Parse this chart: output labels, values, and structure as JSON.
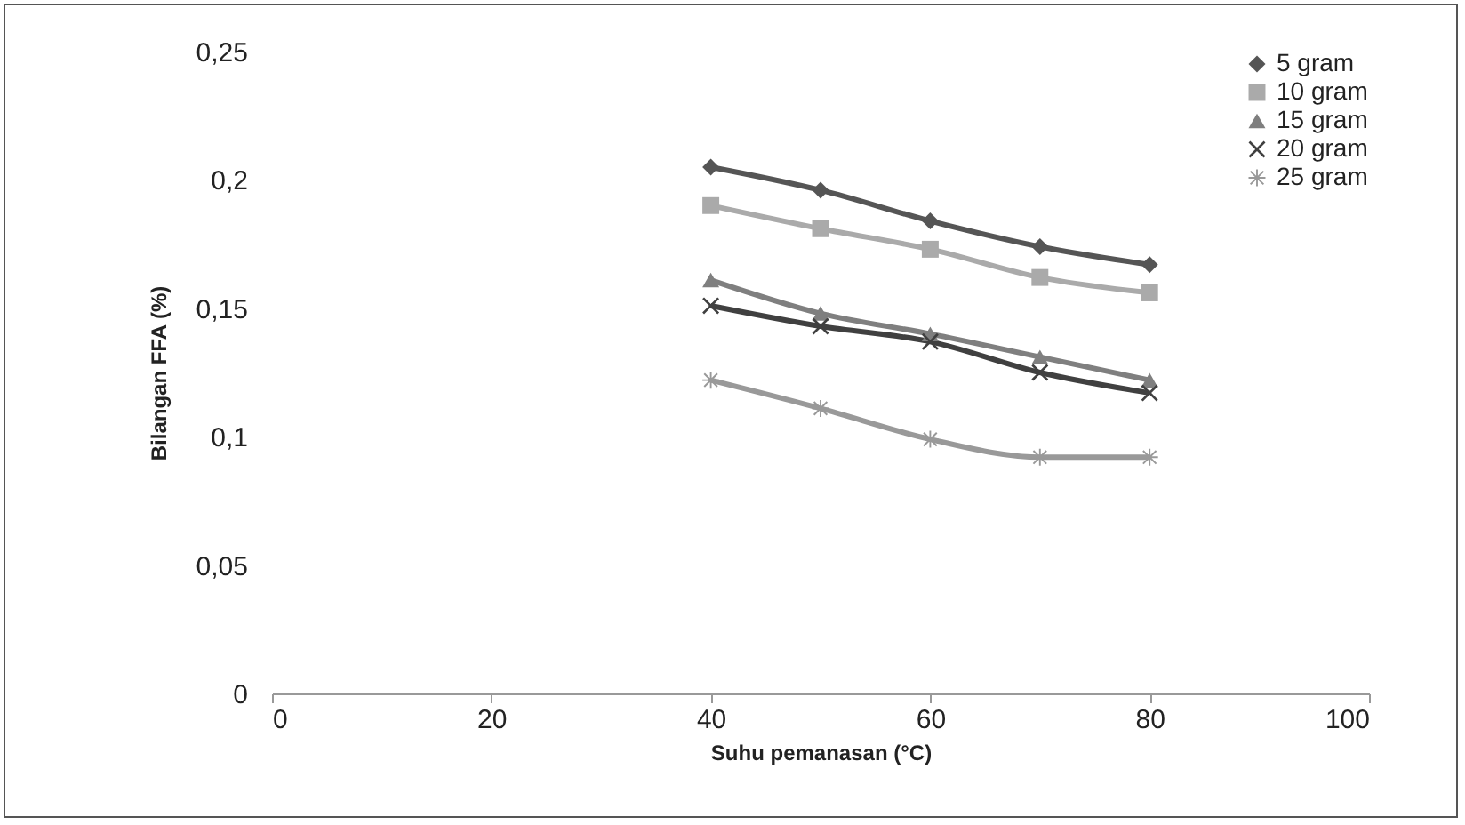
{
  "chart_data": {
    "type": "line",
    "xlabel": "Suhu pemanasan (°C)",
    "ylabel": "Bilangan FFA (%)",
    "x": [
      40,
      50,
      60,
      70,
      80
    ],
    "xlim": [
      0,
      100
    ],
    "xticks": [
      0,
      20,
      40,
      60,
      80,
      100
    ],
    "ylim": [
      0,
      0.25
    ],
    "yticks": [
      {
        "value": 0,
        "label": "0"
      },
      {
        "value": 0.05,
        "label": "0,05"
      },
      {
        "value": 0.1,
        "label": "0,1"
      },
      {
        "value": 0.15,
        "label": "0,15"
      },
      {
        "value": 0.2,
        "label": "0,2"
      },
      {
        "value": 0.25,
        "label": "0,25"
      }
    ],
    "grid": false,
    "legend": "top right",
    "series": [
      {
        "name": "5 gram",
        "color": "#555555",
        "marker": "diamond",
        "values": [
          0.205,
          0.196,
          0.184,
          0.174,
          0.167
        ]
      },
      {
        "name": "10 gram",
        "color": "#aaaaaa",
        "marker": "square",
        "values": [
          0.19,
          0.181,
          0.173,
          0.162,
          0.156
        ]
      },
      {
        "name": "15 gram",
        "color": "#7f7f7f",
        "marker": "triangle",
        "values": [
          0.161,
          0.148,
          0.14,
          0.131,
          0.122
        ]
      },
      {
        "name": "20 gram",
        "color": "#404040",
        "marker": "cross",
        "values": [
          0.151,
          0.143,
          0.137,
          0.125,
          0.117
        ]
      },
      {
        "name": "25 gram",
        "color": "#999999",
        "marker": "star",
        "values": [
          0.122,
          0.111,
          0.099,
          0.092,
          0.092
        ]
      }
    ]
  }
}
